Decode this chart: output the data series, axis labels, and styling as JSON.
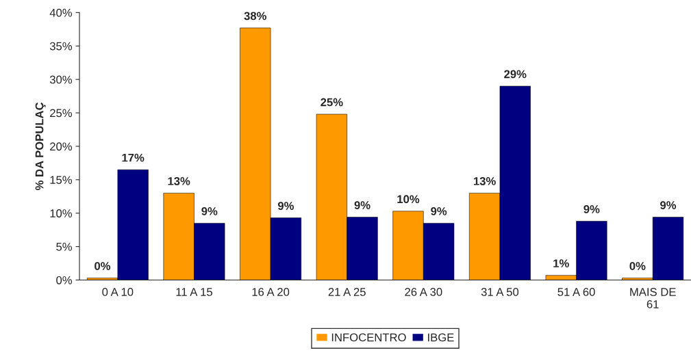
{
  "chart_data": {
    "type": "bar",
    "ylabel": "% DA POPULAÇ",
    "categories": [
      "0 A 10",
      "11 A 15",
      "16 A 20",
      "21 A 25",
      "26 A 30",
      "31 A 50",
      "51 A 60",
      "MAIS DE\n61"
    ],
    "series": [
      {
        "name": "INFOCENTRO",
        "color": "#ff9900",
        "values": [
          0.3,
          13,
          37.7,
          24.8,
          10.3,
          13,
          0.7,
          0.3
        ],
        "value_labels": [
          "0%",
          "13%",
          "38%",
          "25%",
          "10%",
          "13%",
          "1%",
          "0%"
        ]
      },
      {
        "name": "IBGE",
        "color": "#000080",
        "values": [
          16.5,
          8.5,
          9.3,
          9.4,
          8.5,
          29,
          8.8,
          9.4
        ],
        "value_labels": [
          "17%",
          "9%",
          "9%",
          "9%",
          "9%",
          "29%",
          "9%",
          "9%"
        ]
      }
    ],
    "ylim": [
      0,
      40
    ],
    "yticks": [
      {
        "value": 0,
        "label": "0%"
      },
      {
        "value": 5,
        "label": "5%"
      },
      {
        "value": 10,
        "label": "10%"
      },
      {
        "value": 15,
        "label": "15%"
      },
      {
        "value": 20,
        "label": "20%"
      },
      {
        "value": 25,
        "label": "25%"
      },
      {
        "value": 30,
        "label": "30%"
      },
      {
        "value": 35,
        "label": "35%"
      },
      {
        "value": 40,
        "label": "40%"
      }
    ],
    "grid": false,
    "legend": "bottom"
  }
}
